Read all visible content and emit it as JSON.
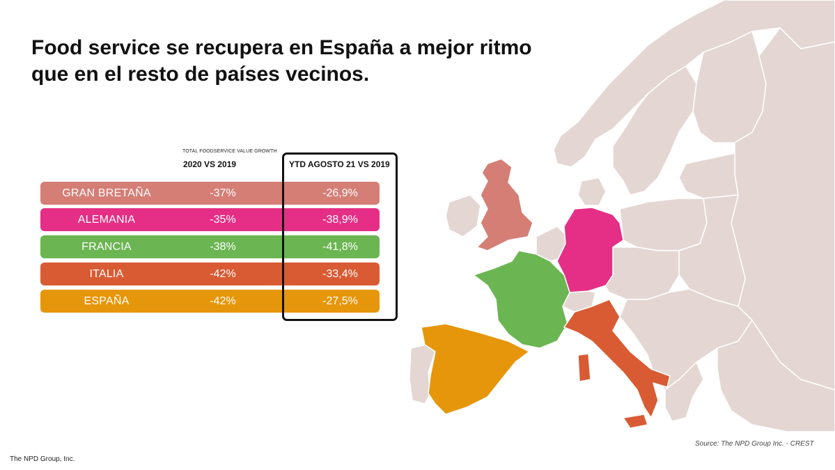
{
  "title": "Food service se recupera en España a mejor ritmo que en el resto de países vecinos.",
  "table": {
    "subheader": "TOTAL FOODSERVICE VALUE GROWTH",
    "col_2020": "2020 VS 2019",
    "col_ytd": "YTD AGOSTO 21 VS 2019",
    "rows": [
      {
        "country": "GRAN BRETAÑA",
        "v2020": "-37%",
        "vytd": "-26,9%",
        "color": "#d47e76"
      },
      {
        "country": "ALEMANIA",
        "v2020": "-35%",
        "vytd": "-38,9%",
        "color": "#e52f86"
      },
      {
        "country": "FRANCIA",
        "v2020": "-38%",
        "vytd": "-41,8%",
        "color": "#6bb552"
      },
      {
        "country": "ITALIA",
        "v2020": "-42%",
        "vytd": "-33,4%",
        "color": "#d95b33"
      },
      {
        "country": "ESPAÑA",
        "v2020": "-42%",
        "vytd": "-27,5%",
        "color": "#e6960b"
      }
    ]
  },
  "map": {
    "base_color": "#e4d7d3",
    "border_color": "#ffffff"
  },
  "source": "Source: The NPD Group Inc. - CREST",
  "footer": "The NPD Group, Inc."
}
